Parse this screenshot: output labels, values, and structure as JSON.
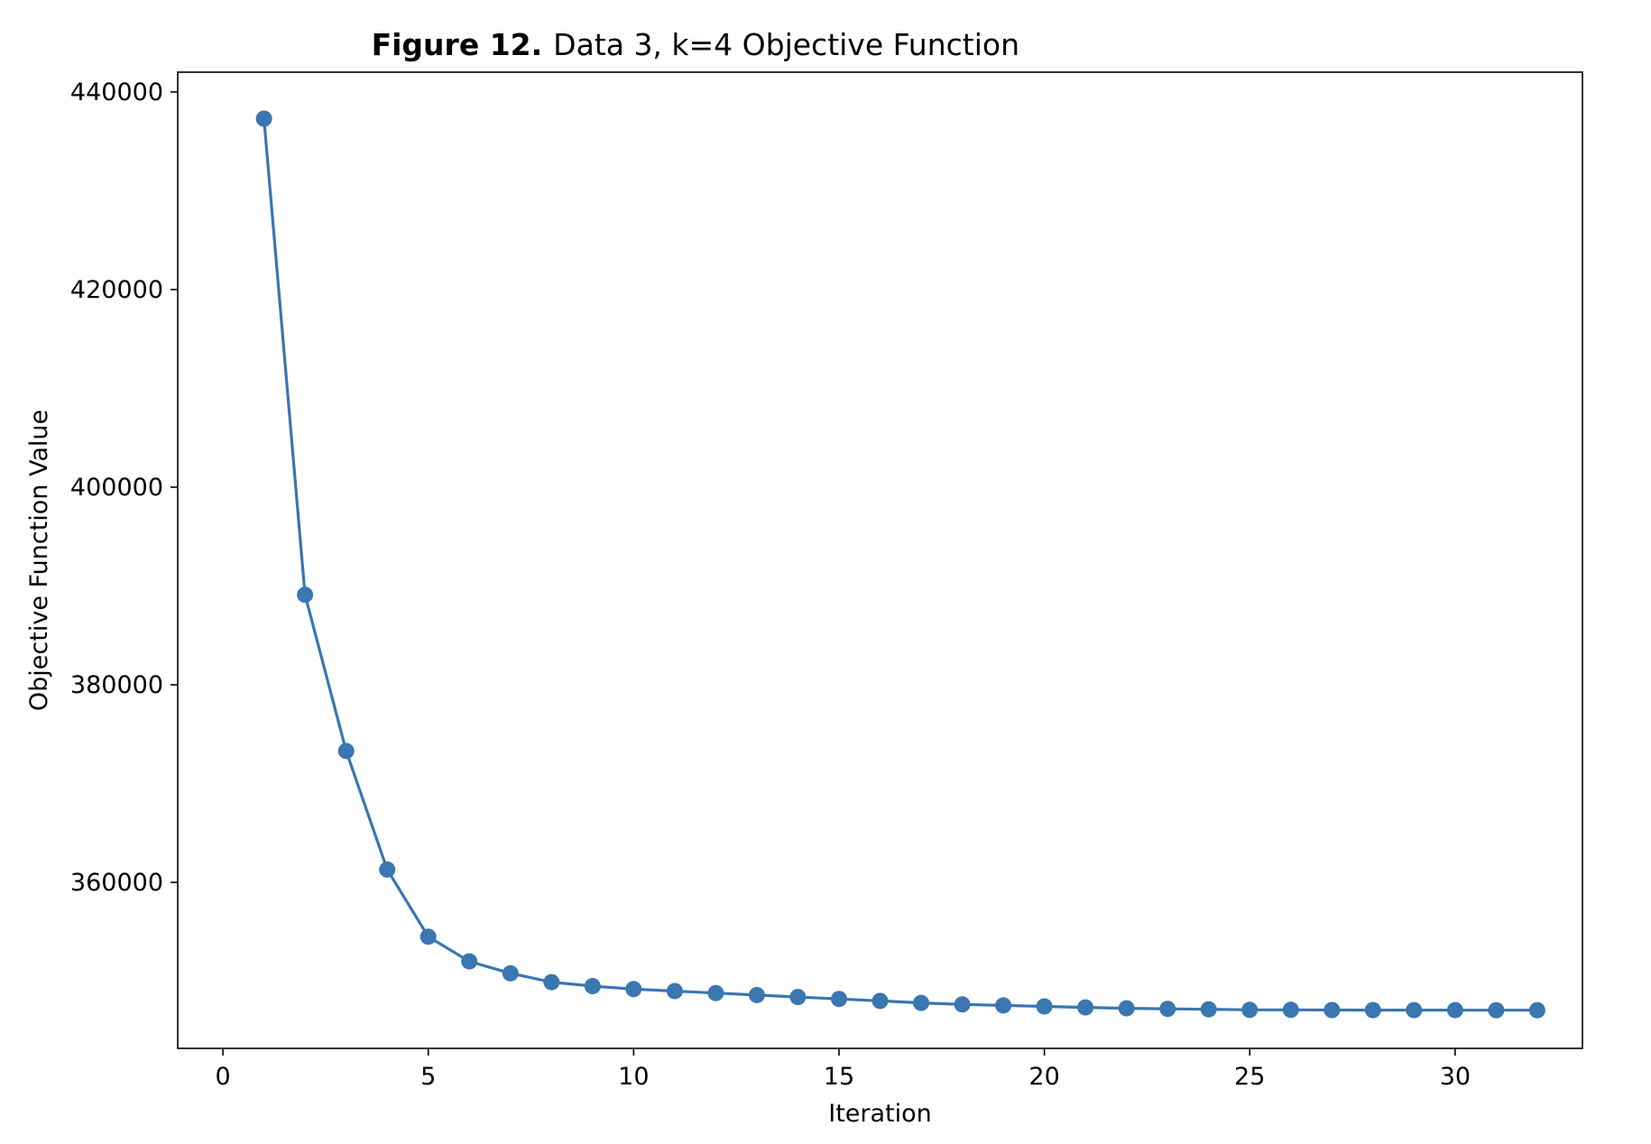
{
  "chart_data": {
    "type": "line",
    "title_prefix": "Figure 12.",
    "title": "Data 3, k=4  Objective Function",
    "xlabel": "Iteration",
    "ylabel": "Objective Function Value",
    "xlim": [
      -1.1,
      33.1
    ],
    "ylim": [
      343200,
      442000
    ],
    "xticks": [
      0,
      5,
      10,
      15,
      20,
      25,
      30
    ],
    "yticks": [
      360000,
      380000,
      400000,
      420000,
      440000
    ],
    "xtick_labels": [
      "0",
      "5",
      "10",
      "15",
      "20",
      "25",
      "30"
    ],
    "ytick_labels": [
      "360000",
      "380000",
      "400000",
      "420000",
      "440000"
    ],
    "grid": false,
    "color": "#3a76b0",
    "marker": "circle",
    "x": [
      1,
      2,
      3,
      4,
      5,
      6,
      7,
      8,
      9,
      10,
      11,
      12,
      13,
      14,
      15,
      16,
      17,
      18,
      19,
      20,
      21,
      22,
      23,
      24,
      25,
      26,
      27,
      28,
      29,
      30,
      31,
      32
    ],
    "values": [
      437300,
      389100,
      373300,
      361300,
      354500,
      352000,
      350800,
      349900,
      349500,
      349200,
      349000,
      348800,
      348600,
      348400,
      348200,
      348000,
      347800,
      347650,
      347550,
      347450,
      347350,
      347250,
      347200,
      347150,
      347100,
      347100,
      347080,
      347070,
      347070,
      347070,
      347060,
      347060
    ]
  }
}
